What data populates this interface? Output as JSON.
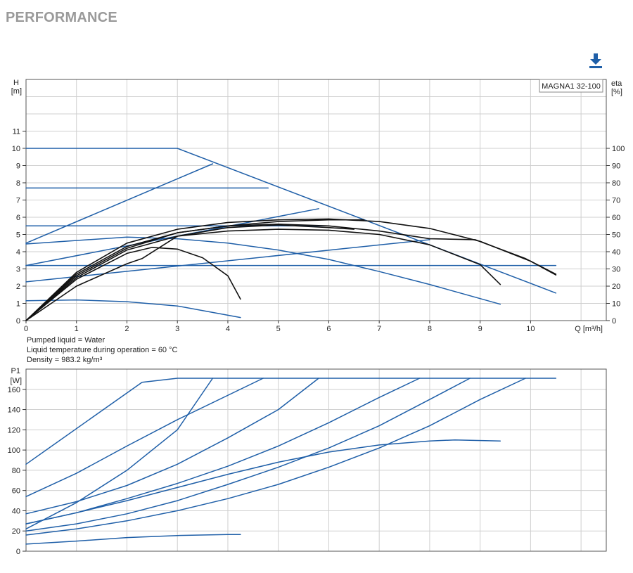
{
  "header": {
    "title": "PERFORMANCE"
  },
  "toolbar": {
    "download_icon": "download-icon",
    "accent": "#1f5fa8"
  },
  "colors": {
    "blue": "#1f5fa8",
    "black": "#111111",
    "grid": "#cfcfcf"
  },
  "info": {
    "pumped_liquid": "Pumped liquid = Water",
    "liquid_temperature": "Liquid temperature during operation = 60 °C",
    "density": "Density = 983.2 kg/m³"
  },
  "chart_data": [
    {
      "type": "line",
      "model_label": "MAGNA1 32-100",
      "xlabel": "Q [m³/h]",
      "ylabel_left": [
        "H",
        "[m]"
      ],
      "ylabel_right": [
        "eta",
        "[%]"
      ],
      "xlim": [
        0,
        11.5
      ],
      "ylim_left": [
        0,
        14
      ],
      "ylim_right": [
        0,
        140
      ],
      "xticks": [
        "0",
        "1",
        "2",
        "3",
        "4",
        "5",
        "6",
        "7",
        "8",
        "9",
        "10"
      ],
      "yticks_left": [
        "0",
        "1",
        "2",
        "3",
        "4",
        "5",
        "6",
        "7",
        "8",
        "9",
        "10",
        "11"
      ],
      "yticks_right": [
        "0",
        "10",
        "20",
        "30",
        "40",
        "50",
        "60",
        "70",
        "80",
        "90",
        "100"
      ],
      "grid": true,
      "series": [
        {
          "color": "#1f5fa8",
          "points": [
            [
              0,
              10
            ],
            [
              3,
              10
            ],
            [
              10.5,
              1.6
            ]
          ]
        },
        {
          "color": "#1f5fa8",
          "points": [
            [
              0,
              7.7
            ],
            [
              4.8,
              7.7
            ]
          ]
        },
        {
          "color": "#1f5fa8",
          "points": [
            [
              0,
              5.5
            ],
            [
              6.0,
              5.5
            ]
          ]
        },
        {
          "color": "#1f5fa8",
          "points": [
            [
              0,
              3.2
            ],
            [
              10.5,
              3.2
            ]
          ]
        },
        {
          "color": "#1f5fa8",
          "points": [
            [
              0,
              4.5
            ],
            [
              3.7,
              9.1
            ]
          ]
        },
        {
          "color": "#1f5fa8",
          "points": [
            [
              0,
              3.2
            ],
            [
              5.8,
              6.5
            ]
          ]
        },
        {
          "color": "#1f5fa8",
          "points": [
            [
              0,
              2.25
            ],
            [
              8.0,
              4.7
            ]
          ]
        },
        {
          "color": "#1f5fa8",
          "points": [
            [
              0,
              4.45
            ],
            [
              2.0,
              4.85
            ],
            [
              3.0,
              4.75
            ],
            [
              4.0,
              4.5
            ],
            [
              5.0,
              4.1
            ],
            [
              6.0,
              3.55
            ],
            [
              7.0,
              2.85
            ],
            [
              8.0,
              2.1
            ],
            [
              9.4,
              0.95
            ]
          ]
        },
        {
          "color": "#1f5fa8",
          "points": [
            [
              0,
              1.15
            ],
            [
              1.0,
              1.2
            ],
            [
              2.0,
              1.1
            ],
            [
              3.0,
              0.85
            ],
            [
              4.25,
              0.18
            ]
          ]
        },
        {
          "color": "#111111",
          "points": [
            [
              0,
              0
            ],
            [
              1.0,
              2.8
            ],
            [
              2.0,
              4.5
            ],
            [
              3.0,
              5.3
            ],
            [
              4.0,
              5.7
            ],
            [
              5.0,
              5.85
            ],
            [
              6.0,
              5.9
            ],
            [
              7.0,
              5.75
            ],
            [
              8.0,
              5.35
            ],
            [
              9.0,
              4.6
            ],
            [
              10.0,
              3.45
            ],
            [
              10.5,
              2.65
            ]
          ]
        },
        {
          "color": "#111111",
          "points": [
            [
              0,
              0
            ],
            [
              1.0,
              2.6
            ],
            [
              2.0,
              4.2
            ],
            [
              3.0,
              5.1
            ],
            [
              4.0,
              5.5
            ],
            [
              5.0,
              5.75
            ],
            [
              6.0,
              5.85
            ],
            [
              6.7,
              5.85
            ]
          ]
        },
        {
          "color": "#111111",
          "points": [
            [
              0,
              0
            ],
            [
              1.0,
              2.7
            ],
            [
              2.0,
              4.3
            ],
            [
              3.0,
              5.1
            ],
            [
              4.0,
              5.5
            ],
            [
              5.0,
              5.6
            ],
            [
              6.0,
              5.5
            ],
            [
              7.0,
              5.2
            ],
            [
              8.0,
              4.75
            ],
            [
              8.9,
              4.7
            ],
            [
              9.9,
              3.6
            ],
            [
              10.5,
              2.7
            ]
          ]
        },
        {
          "color": "#111111",
          "points": [
            [
              0,
              0
            ],
            [
              1.0,
              2.5
            ],
            [
              2.0,
              4.1
            ],
            [
              3.0,
              4.9
            ],
            [
              4.0,
              5.2
            ],
            [
              5.0,
              5.3
            ],
            [
              6.0,
              5.25
            ],
            [
              7.0,
              5.0
            ],
            [
              8.0,
              4.4
            ],
            [
              9.0,
              3.25
            ],
            [
              9.4,
              2.1
            ]
          ]
        },
        {
          "color": "#111111",
          "points": [
            [
              0,
              0
            ],
            [
              1.0,
              2.0
            ],
            [
              2.0,
              3.3
            ],
            [
              2.3,
              3.6
            ],
            [
              3.0,
              4.9
            ],
            [
              4.0,
              5.4
            ],
            [
              5.0,
              5.55
            ],
            [
              6.0,
              5.4
            ],
            [
              6.5,
              5.3
            ]
          ]
        },
        {
          "color": "#111111",
          "points": [
            [
              0,
              0
            ],
            [
              1.0,
              2.4
            ],
            [
              2.0,
              3.9
            ],
            [
              2.5,
              4.25
            ],
            [
              3.0,
              4.15
            ],
            [
              3.5,
              3.65
            ],
            [
              4.0,
              2.6
            ],
            [
              4.25,
              1.25
            ]
          ]
        }
      ]
    },
    {
      "type": "line",
      "ylabel_left": [
        "P1",
        "[W]"
      ],
      "xlim": [
        0,
        11.5
      ],
      "ylim_left": [
        0,
        180
      ],
      "yticks_left": [
        "0",
        "20",
        "40",
        "60",
        "80",
        "100",
        "120",
        "140",
        "160"
      ],
      "grid": true,
      "series": [
        {
          "color": "#1f5fa8",
          "points": [
            [
              0,
              86
            ],
            [
              2.3,
              167
            ],
            [
              3.0,
              171
            ],
            [
              10.5,
              171
            ]
          ]
        },
        {
          "color": "#1f5fa8",
          "points": [
            [
              0,
              54
            ],
            [
              1.0,
              77
            ],
            [
              2.0,
              104
            ],
            [
              3.0,
              130
            ],
            [
              4.7,
              171
            ]
          ]
        },
        {
          "color": "#1f5fa8",
          "points": [
            [
              0,
              37
            ],
            [
              1.0,
              49
            ],
            [
              2.0,
              65
            ],
            [
              3.0,
              86
            ],
            [
              4.0,
              112
            ],
            [
              5.0,
              140
            ],
            [
              5.8,
              171
            ]
          ]
        },
        {
          "color": "#1f5fa8",
          "points": [
            [
              0,
              27
            ],
            [
              1.0,
              38
            ],
            [
              2.0,
              52
            ],
            [
              3.0,
              67
            ],
            [
              4.0,
              84
            ],
            [
              5.0,
              104
            ],
            [
              6.0,
              127
            ],
            [
              7.0,
              152
            ],
            [
              7.8,
              171
            ]
          ]
        },
        {
          "color": "#1f5fa8",
          "points": [
            [
              0,
              20
            ],
            [
              1.0,
              27
            ],
            [
              2.0,
              37
            ],
            [
              3.0,
              50
            ],
            [
              4.0,
              66
            ],
            [
              5.0,
              83
            ],
            [
              6.0,
              102
            ],
            [
              7.0,
              124
            ],
            [
              8.0,
              150
            ],
            [
              8.8,
              171
            ]
          ]
        },
        {
          "color": "#1f5fa8",
          "points": [
            [
              0,
              16
            ],
            [
              1.0,
              22
            ],
            [
              2.0,
              30
            ],
            [
              3.0,
              40
            ],
            [
              4.0,
              52
            ],
            [
              5.0,
              66
            ],
            [
              6.0,
              83
            ],
            [
              7.0,
              102
            ],
            [
              8.0,
              124
            ],
            [
              9.0,
              150
            ],
            [
              9.9,
              171
            ]
          ]
        },
        {
          "color": "#1f5fa8",
          "points": [
            [
              0,
              22
            ],
            [
              1.0,
              48
            ],
            [
              2.0,
              80
            ],
            [
              3.0,
              120
            ],
            [
              3.7,
              171
            ]
          ]
        },
        {
          "color": "#1f5fa8",
          "points": [
            [
              0,
              27
            ],
            [
              1.0,
              38
            ],
            [
              2.0,
              50
            ],
            [
              3.0,
              63
            ],
            [
              4.0,
              76
            ],
            [
              5.0,
              88
            ],
            [
              6.0,
              98
            ],
            [
              7.0,
              105
            ],
            [
              8.0,
              109
            ],
            [
              8.5,
              110
            ],
            [
              9.4,
              109
            ]
          ]
        },
        {
          "color": "#1f5fa8",
          "points": [
            [
              0,
              7
            ],
            [
              1.0,
              10
            ],
            [
              2.0,
              13.5
            ],
            [
              3.0,
              15.5
            ],
            [
              4.0,
              16.5
            ],
            [
              4.25,
              16.5
            ]
          ]
        }
      ]
    }
  ]
}
